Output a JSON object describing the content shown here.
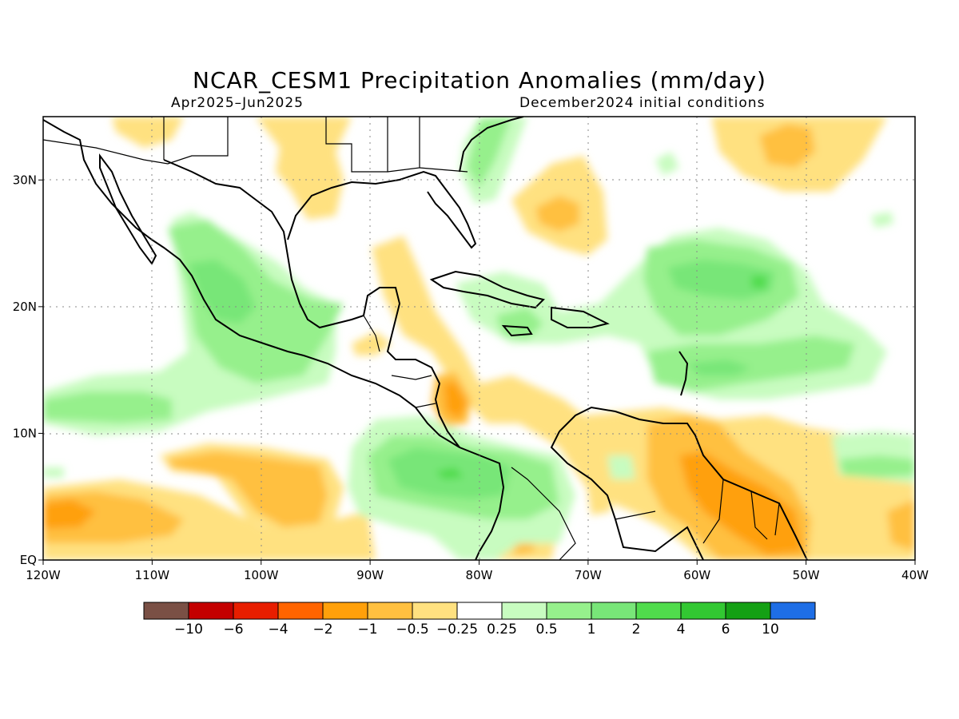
{
  "header": {
    "title": "NCAR_CESM1 Precipitation Anomalies (mm/day)",
    "period": "Apr2025–Jun2025",
    "initial_conditions": "December2024 initial conditions"
  },
  "map": {
    "lon_range": [
      -120,
      -40
    ],
    "lat_range": [
      0,
      35
    ],
    "lon_ticks": [
      {
        "value": -120,
        "label": "120W"
      },
      {
        "value": -110,
        "label": "110W"
      },
      {
        "value": -100,
        "label": "100W"
      },
      {
        "value": -90,
        "label": "90W"
      },
      {
        "value": -80,
        "label": "80W"
      },
      {
        "value": -70,
        "label": "70W"
      },
      {
        "value": -60,
        "label": "60W"
      },
      {
        "value": -50,
        "label": "50W"
      },
      {
        "value": -40,
        "label": "40W"
      }
    ],
    "lat_ticks": [
      {
        "value": 0,
        "label": "EQ"
      },
      {
        "value": 10,
        "label": "10N"
      },
      {
        "value": 20,
        "label": "20N"
      },
      {
        "value": 30,
        "label": "30N"
      }
    ],
    "grid": "dotted"
  },
  "colorbar": {
    "colors": [
      "#7a5045",
      "#c40000",
      "#e81e00",
      "#ff6400",
      "#ffa00a",
      "#ffc040",
      "#ffe180",
      "#ffffff",
      "#c8fcc0",
      "#96f08c",
      "#78e678",
      "#50dc4c",
      "#32c832",
      "#14a014",
      "#1e6ee6"
    ],
    "labels": [
      "−10",
      "−6",
      "−4",
      "−2",
      "−1",
      "−0.5",
      "−0.25",
      "0.25",
      "0.5",
      "1",
      "2",
      "4",
      "6",
      "10"
    ]
  },
  "anomaly_regions": [
    {
      "level": "-2",
      "lon": -115,
      "lat": 4
    },
    {
      "level": "-2",
      "lon": -72,
      "lat": 27
    },
    {
      "level": "-2",
      "lon": -57,
      "lat": 5
    },
    {
      "level": "-2",
      "lon": -55,
      "lat": 32
    },
    {
      "level": "-1",
      "lon": -98,
      "lat": 6
    },
    {
      "level": "-1",
      "lon": -83,
      "lat": 12
    },
    {
      "level": "-0.5",
      "lon": -86,
      "lat": 20
    },
    {
      "level": "-0.5",
      "lon": -95,
      "lat": 31
    },
    {
      "level": "1",
      "lon": -102,
      "lat": 21
    },
    {
      "level": "1",
      "lon": -60,
      "lat": 22
    },
    {
      "level": "1",
      "lon": -112,
      "lat": 12
    },
    {
      "level": "2",
      "lon": -82,
      "lat": 6
    },
    {
      "level": "2",
      "lon": -58,
      "lat": 22
    }
  ]
}
